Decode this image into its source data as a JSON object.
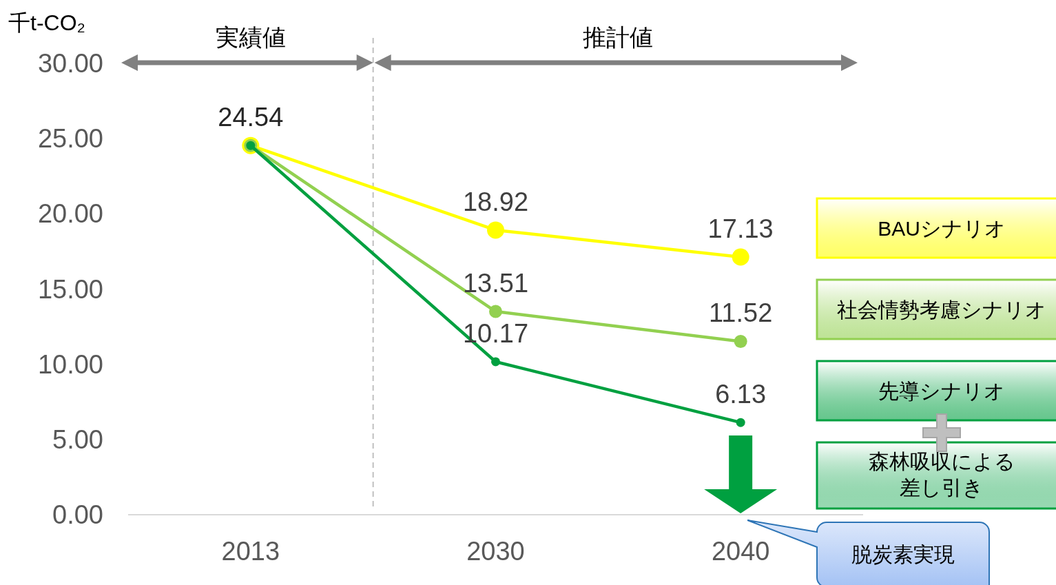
{
  "chart_data": {
    "type": "line",
    "ylabel": "千t-CO₂",
    "categories": [
      "2013",
      "2030",
      "2040"
    ],
    "ylim": [
      0,
      30
    ],
    "yticks": [
      {
        "value": 0,
        "label": "0.00"
      },
      {
        "value": 5,
        "label": "5.00"
      },
      {
        "value": 10,
        "label": "10.00"
      },
      {
        "value": 15,
        "label": "15.00"
      },
      {
        "value": 20,
        "label": "20.00"
      },
      {
        "value": 25,
        "label": "25.00"
      },
      {
        "value": 30,
        "label": "30.00"
      }
    ],
    "marker": "circle",
    "legend": "right",
    "series": [
      {
        "name": "BAUシナリオ",
        "color": "#ffff00",
        "values": [
          24.54,
          18.92,
          17.13
        ],
        "value_labels": [
          "24.54",
          "18.92",
          "17.13"
        ]
      },
      {
        "name": "社会情勢考慮シナリオ",
        "color": "#92d050",
        "values": [
          24.54,
          13.51,
          11.52
        ],
        "value_labels": [
          null,
          "13.51",
          "11.52"
        ]
      },
      {
        "name": "先導シナリオ",
        "color": "#00a040",
        "values": [
          24.54,
          10.17,
          6.13
        ],
        "value_labels": [
          null,
          "10.17",
          "6.13"
        ]
      }
    ],
    "annotations": [
      "実績値",
      "推計値",
      "森林吸収による差し引き",
      "脱炭素実現"
    ]
  }
}
